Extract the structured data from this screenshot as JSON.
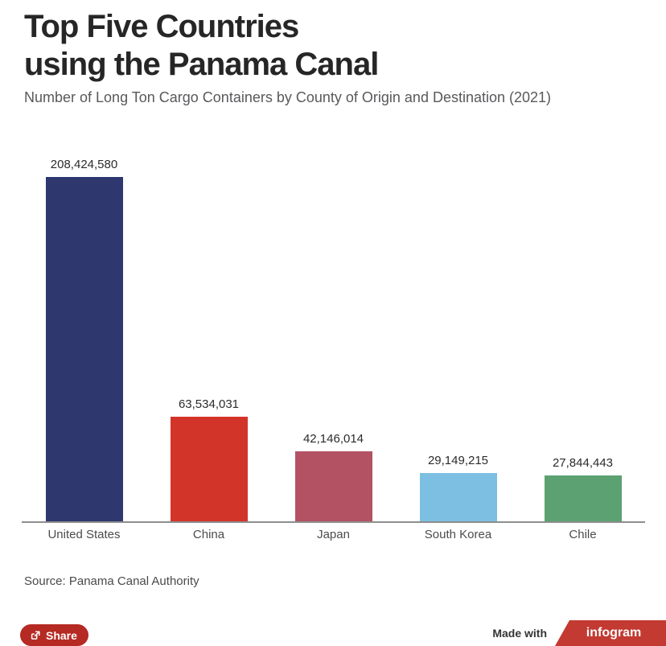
{
  "header": {
    "title_line1": "Top Five Countries",
    "title_line2": "using the Panama Canal",
    "subtitle": "Number of Long Ton Cargo Containers by County of Origin and Destination (2021)"
  },
  "chart_data": {
    "type": "bar",
    "title": "Top Five Countries using the Panama Canal",
    "subtitle": "Number of Long Ton Cargo Containers by County of Origin and Destination (2021)",
    "categories": [
      "United States",
      "China",
      "Japan",
      "South Korea",
      "Chile"
    ],
    "values": [
      208424580,
      63534031,
      42146014,
      29149215,
      27844443
    ],
    "value_labels": [
      "208,424,580",
      "63,534,031",
      "42,146,014",
      "29,149,215",
      "27,844,443"
    ],
    "colors": [
      "#2e386f",
      "#d33429",
      "#b25263",
      "#7dbfe2",
      "#5ba171"
    ],
    "xlabel": "",
    "ylabel": "",
    "ylim": [
      0,
      208424580
    ],
    "grid": false,
    "legend": "none",
    "data_labels": "above-bars",
    "axis_line_color": "#8e8e8e"
  },
  "source": {
    "text": "Source: Panama Canal Authority"
  },
  "footer": {
    "share_label": "Share",
    "made_with_label": "Made with",
    "brand_label": "infogram"
  },
  "colors": {
    "share_button": "#b52a23",
    "brand_red": "#c23a31",
    "title_text": "#262626",
    "subtitle_text": "#58595b"
  }
}
